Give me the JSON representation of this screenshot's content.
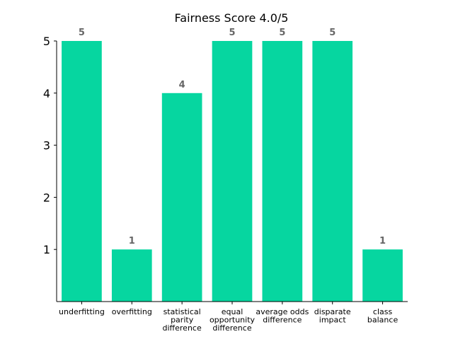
{
  "chart_data": {
    "type": "bar",
    "title": "Fairness Score 4.0/5",
    "categories": [
      [
        "underfitting"
      ],
      [
        "overfitting"
      ],
      [
        "statistical",
        "parity",
        "difference"
      ],
      [
        "equal",
        "opportunity",
        "difference"
      ],
      [
        "average odds",
        "difference"
      ],
      [
        "disparate",
        "impact"
      ],
      [
        "class",
        "balance"
      ]
    ],
    "values": [
      5,
      1,
      4,
      5,
      5,
      5,
      1
    ],
    "data_labels": [
      "5",
      "1",
      "4",
      "5",
      "5",
      "5",
      "1"
    ],
    "yticks": [
      1,
      2,
      3,
      4,
      5
    ],
    "ylim": [
      0,
      5
    ],
    "xlabel": "",
    "ylabel": "",
    "grid": false,
    "bar_color": "#06d6a0",
    "label_color": "#666666"
  }
}
